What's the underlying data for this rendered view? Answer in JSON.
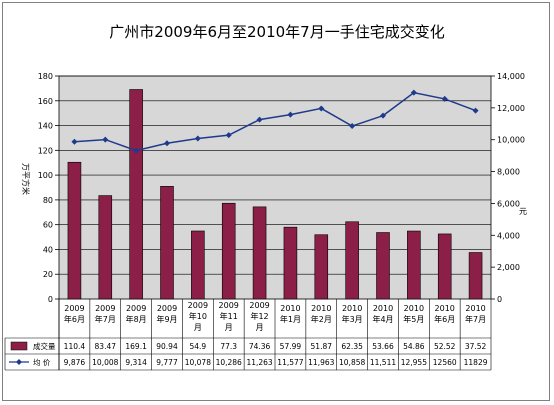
{
  "chart_data": {
    "type": "bar",
    "title": "广州市2009年6月至2010年7月一手住宅成交变化",
    "ylabel": "万平方米",
    "y2label": "元",
    "ylim": [
      0,
      180
    ],
    "y2lim": [
      0,
      14000
    ],
    "yticks": [
      "0",
      "20",
      "40",
      "60",
      "80",
      "100",
      "120",
      "140",
      "160",
      "180"
    ],
    "y2ticks": [
      "0",
      "2,000",
      "4,000",
      "6,000",
      "8,000",
      "10,000",
      "12,000",
      "14,000"
    ],
    "grid": "horizontal",
    "legend": "data-table-left",
    "categories": [
      [
        "2009",
        "年6月"
      ],
      [
        "2009",
        "年7月"
      ],
      [
        "2009",
        "年8月"
      ],
      [
        "2009",
        "年9月"
      ],
      [
        "2009",
        "年10",
        "月"
      ],
      [
        "2009",
        "年11",
        "月"
      ],
      [
        "2009",
        "年12",
        "月"
      ],
      [
        "2010",
        "年1月"
      ],
      [
        "2010",
        "年2月"
      ],
      [
        "2010",
        "年3月"
      ],
      [
        "2010",
        "年4月"
      ],
      [
        "2010",
        "年5月"
      ],
      [
        "2010",
        "年6月"
      ],
      [
        "2010",
        "年7月"
      ]
    ],
    "series": [
      {
        "name": "成交量",
        "type": "bar",
        "axis": "left",
        "color": "#8b1f47",
        "values": [
          110.4,
          83.47,
          169.1,
          90.94,
          54.9,
          77.3,
          74.36,
          57.99,
          51.87,
          62.35,
          53.66,
          54.86,
          52.52,
          37.52
        ],
        "labels": [
          "110.4",
          "83.47",
          "169.1",
          "90.94",
          "54.9",
          "77.3",
          "74.36",
          "57.99",
          "51.87",
          "62.35",
          "53.66",
          "54.86",
          "52.52",
          "37.52"
        ]
      },
      {
        "name": "均 价",
        "type": "line",
        "axis": "right",
        "color": "#1f3a8c",
        "values": [
          9876,
          10008,
          9314,
          9777,
          10078,
          10286,
          11263,
          11577,
          11963,
          10858,
          11511,
          12955,
          12560,
          11829
        ],
        "labels": [
          "9,876",
          "10,008",
          "9,314",
          "9,777",
          "10,078",
          "10,286",
          "11,263",
          "11,577",
          "11,963",
          "10,858",
          "11,511",
          "12,955",
          "12560",
          "11829"
        ]
      }
    ],
    "colors": {
      "plot_bg": "#d7d7d7",
      "bar": "#8b1f47",
      "line": "#1f3a8c"
    }
  }
}
